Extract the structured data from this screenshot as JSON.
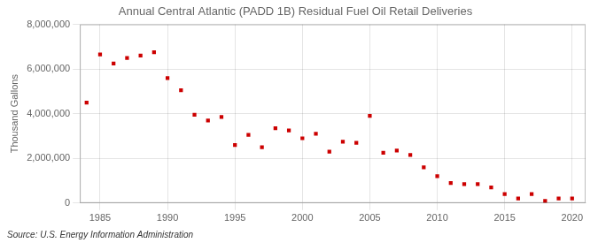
{
  "chart_data": {
    "type": "scatter",
    "title": "Annual Central Atlantic (PADD 1B) Residual Fuel Oil Retail Deliveries",
    "ylabel": "Thousand Gallons",
    "annotations": [
      "Source: U.S. Energy Information Administration"
    ],
    "x": [
      1984,
      1985,
      1986,
      1987,
      1988,
      1989,
      1990,
      1991,
      1992,
      1993,
      1994,
      1995,
      1996,
      1997,
      1998,
      1999,
      2000,
      2001,
      2002,
      2003,
      2004,
      2005,
      2006,
      2007,
      2008,
      2009,
      2010,
      2011,
      2012,
      2013,
      2014,
      2015,
      2016,
      2017,
      2018,
      2019,
      2020
    ],
    "values": [
      4500000,
      6650000,
      6250000,
      6500000,
      6600000,
      6750000,
      5600000,
      5050000,
      3950000,
      3700000,
      3850000,
      2600000,
      3050000,
      2500000,
      3350000,
      3250000,
      2900000,
      3100000,
      2300000,
      2750000,
      2700000,
      3900000,
      2250000,
      2350000,
      2150000,
      1600000,
      1200000,
      900000,
      850000,
      850000,
      700000,
      400000,
      200000,
      400000,
      100000,
      200000,
      200000
    ],
    "color": "#cc0000",
    "marker": "square",
    "xlim": [
      1983.5,
      2021
    ],
    "xticks": [
      1985,
      1990,
      1995,
      2000,
      2005,
      2010,
      2015,
      2020
    ],
    "ylim": [
      0,
      8000000
    ],
    "yticks": [
      0,
      {
        "value": 2000000,
        "label": "2,000,000"
      },
      {
        "value": 4000000,
        "label": "4,000,000"
      },
      {
        "value": 6000000,
        "label": "6,000,000"
      },
      {
        "value": 8000000,
        "label": "8,000,000"
      }
    ],
    "grid": true
  }
}
